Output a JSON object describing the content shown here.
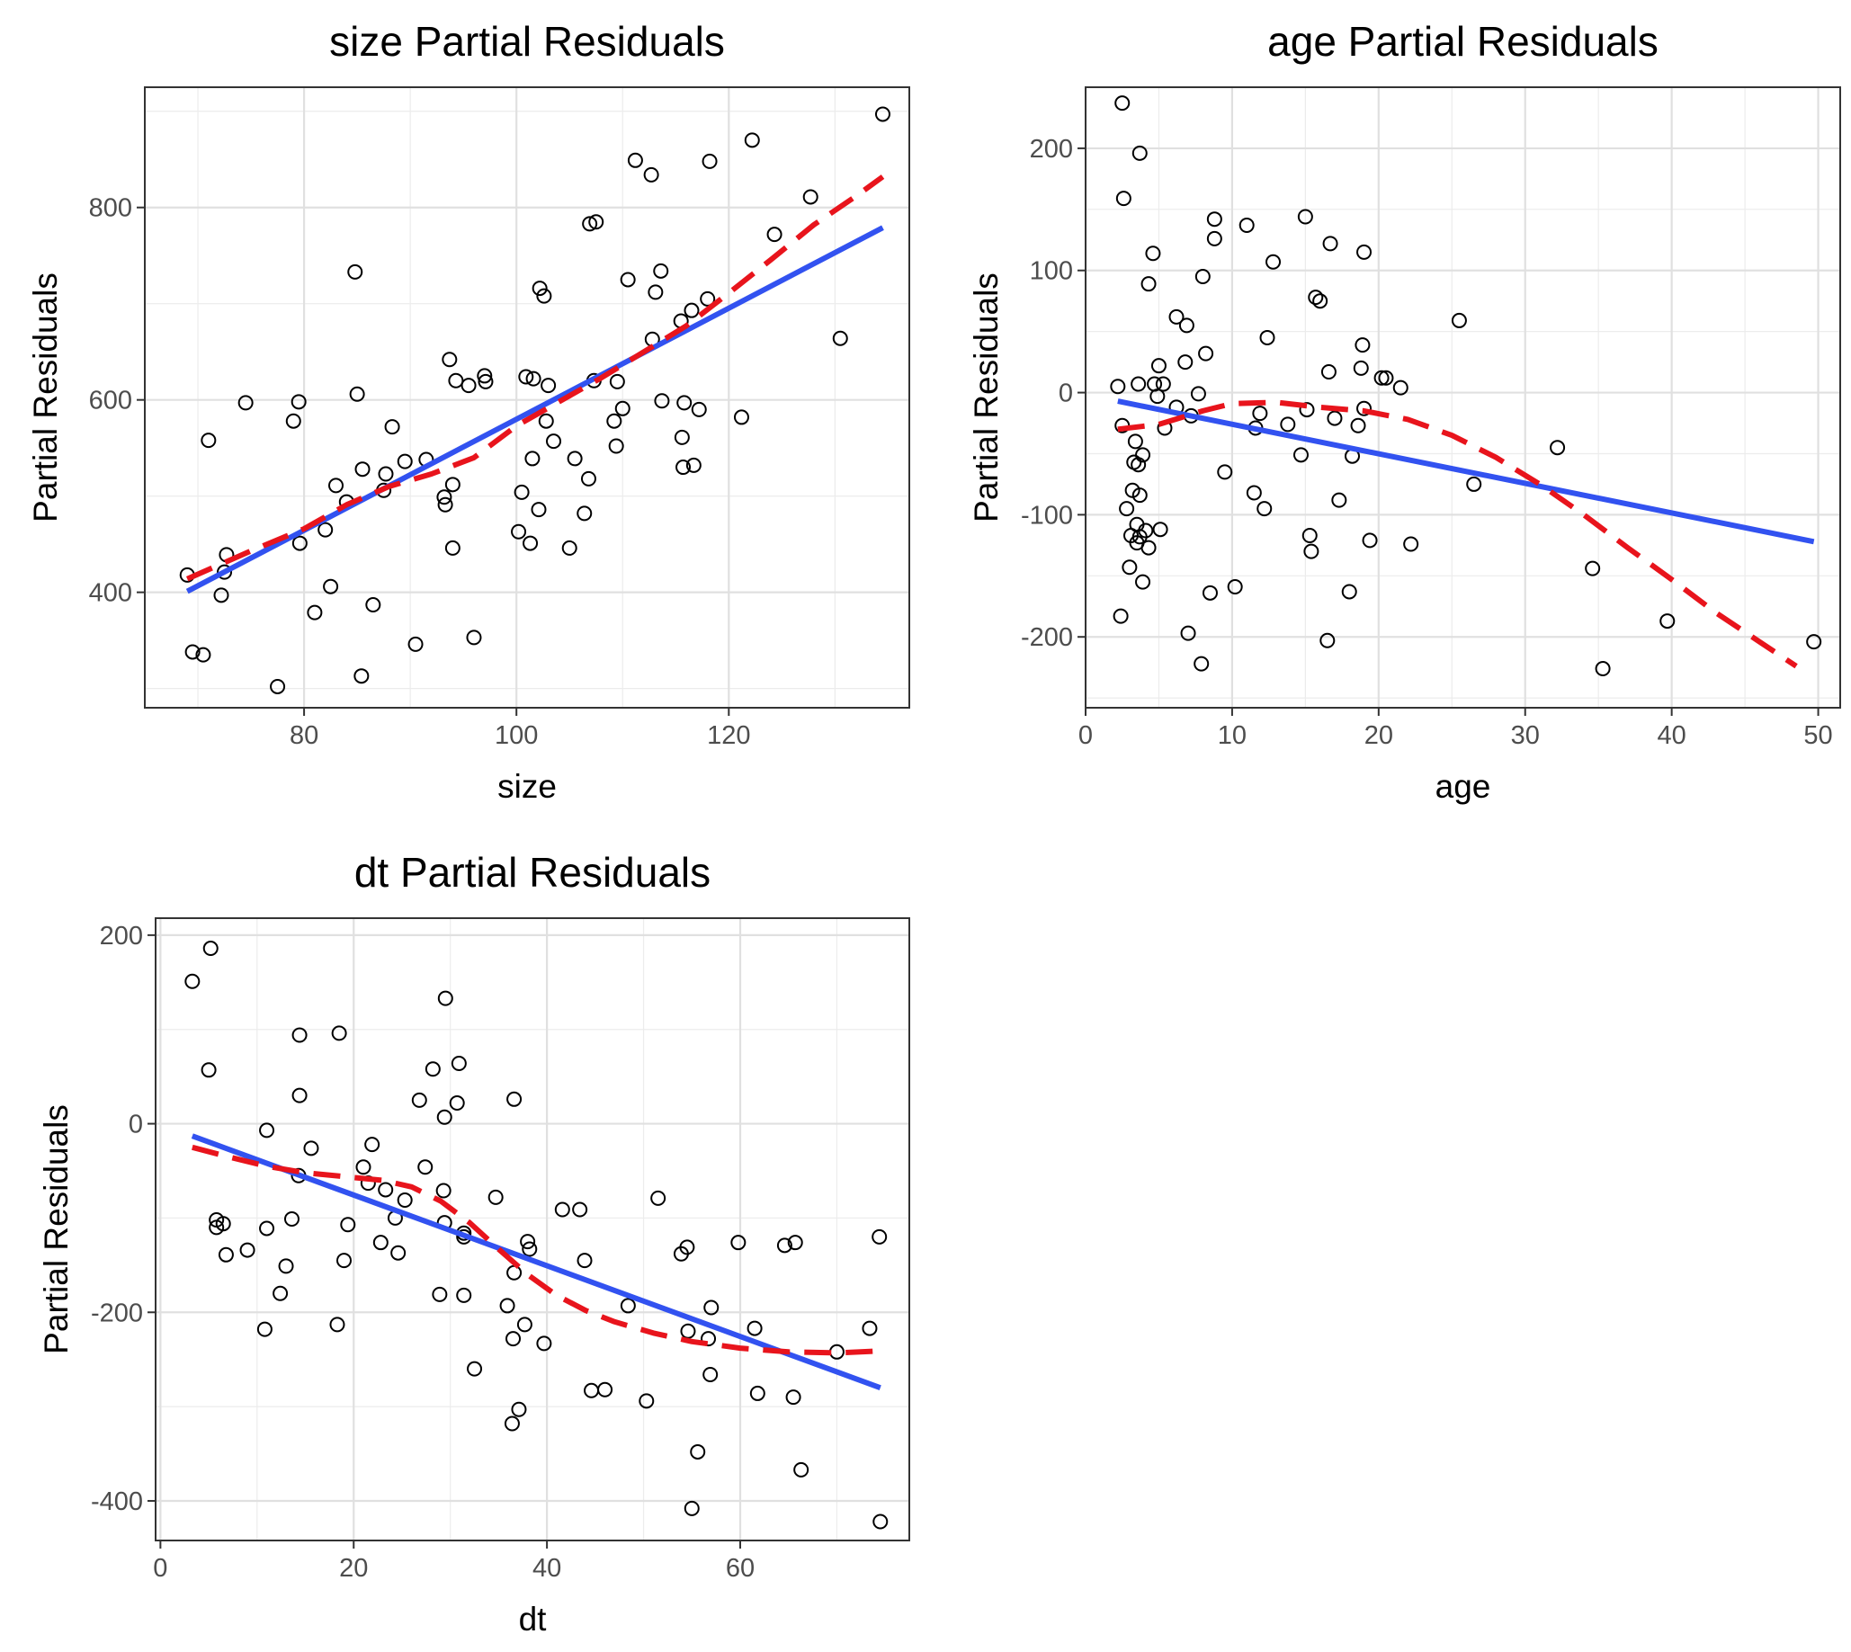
{
  "chart_data": [
    {
      "type": "scatter",
      "title": "size Partial Residuals",
      "xlabel": "size",
      "ylabel": "Partial Residuals",
      "xlim": [
        65,
        137
      ],
      "ylim": [
        280,
        925
      ],
      "xticks": [
        80,
        100,
        120
      ],
      "yticks": [
        400,
        600,
        800
      ],
      "grid": true,
      "points": [
        [
          69,
          418
        ],
        [
          69.5,
          338
        ],
        [
          70.5,
          335
        ],
        [
          71,
          558
        ],
        [
          72.2,
          397
        ],
        [
          72.5,
          421
        ],
        [
          72.7,
          439
        ],
        [
          74.5,
          597
        ],
        [
          77.5,
          302
        ],
        [
          79,
          578
        ],
        [
          79.5,
          598
        ],
        [
          79.6,
          451
        ],
        [
          81,
          379
        ],
        [
          82,
          465
        ],
        [
          82.5,
          406
        ],
        [
          83,
          511
        ],
        [
          84,
          494
        ],
        [
          84.8,
          733
        ],
        [
          85,
          606
        ],
        [
          85.4,
          313
        ],
        [
          85.5,
          528
        ],
        [
          86.5,
          387
        ],
        [
          87.5,
          506
        ],
        [
          87.7,
          523
        ],
        [
          88.3,
          572
        ],
        [
          89.5,
          536
        ],
        [
          90.5,
          346
        ],
        [
          91.5,
          538
        ],
        [
          93.2,
          499
        ],
        [
          93.3,
          491
        ],
        [
          93.7,
          642
        ],
        [
          94,
          446
        ],
        [
          94,
          512
        ],
        [
          94.3,
          620
        ],
        [
          95.5,
          615
        ],
        [
          96,
          353
        ],
        [
          97,
          625
        ],
        [
          97.1,
          619
        ],
        [
          100.2,
          463
        ],
        [
          100.5,
          504
        ],
        [
          100.9,
          624
        ],
        [
          101.5,
          539
        ],
        [
          101.6,
          622
        ],
        [
          101.3,
          451
        ],
        [
          102.1,
          486
        ],
        [
          102.2,
          716
        ],
        [
          102.6,
          708
        ],
        [
          102.8,
          578
        ],
        [
          103,
          615
        ],
        [
          103.5,
          557
        ],
        [
          105,
          446
        ],
        [
          105.5,
          539
        ],
        [
          106.4,
          482
        ],
        [
          106.8,
          518
        ],
        [
          107.3,
          620
        ],
        [
          106.9,
          783
        ],
        [
          107.5,
          785
        ],
        [
          109.2,
          578
        ],
        [
          109.4,
          552
        ],
        [
          109.5,
          619
        ],
        [
          110,
          591
        ],
        [
          110.5,
          725
        ],
        [
          111.2,
          849
        ],
        [
          112.7,
          834
        ],
        [
          112.8,
          663
        ],
        [
          113.1,
          712
        ],
        [
          113.6,
          734
        ],
        [
          113.7,
          599
        ],
        [
          115.5,
          682
        ],
        [
          115.6,
          561
        ],
        [
          115.7,
          530
        ],
        [
          115.8,
          597
        ],
        [
          116.5,
          693
        ],
        [
          116.7,
          532
        ],
        [
          117.2,
          590
        ],
        [
          118,
          705
        ],
        [
          118.2,
          848
        ],
        [
          121.2,
          582
        ],
        [
          122.2,
          870
        ],
        [
          124.3,
          772
        ],
        [
          127.7,
          811
        ],
        [
          130.5,
          664
        ],
        [
          134.5,
          897
        ]
      ],
      "fit": [
        [
          69,
          401
        ],
        [
          134.5,
          779
        ]
      ],
      "smooth": [
        [
          69,
          414
        ],
        [
          75,
          443
        ],
        [
          80,
          466
        ],
        [
          84,
          491
        ],
        [
          88,
          510
        ],
        [
          92,
          523
        ],
        [
          96,
          540
        ],
        [
          100,
          573
        ],
        [
          104,
          598
        ],
        [
          108,
          623
        ],
        [
          112,
          650
        ],
        [
          116,
          677
        ],
        [
          120,
          711
        ],
        [
          124,
          746
        ],
        [
          128,
          782
        ],
        [
          132,
          812
        ],
        [
          134.5,
          832
        ]
      ]
    },
    {
      "type": "scatter",
      "title": "age Partial Residuals",
      "xlabel": "age",
      "ylabel": "Partial Residuals",
      "xlim": [
        0,
        51.5
      ],
      "ylim": [
        -258,
        250
      ],
      "xticks": [
        0,
        10,
        20,
        30,
        40,
        50
      ],
      "yticks": [
        -200,
        -100,
        0,
        100,
        200
      ],
      "grid": true,
      "points": [
        [
          2.2,
          5
        ],
        [
          2.4,
          -183
        ],
        [
          2.5,
          -27
        ],
        [
          2.5,
          237
        ],
        [
          2.6,
          159
        ],
        [
          2.8,
          -95
        ],
        [
          3,
          -143
        ],
        [
          3.1,
          -117
        ],
        [
          3.2,
          -80
        ],
        [
          3.3,
          -57
        ],
        [
          3.4,
          -40
        ],
        [
          3.5,
          -108
        ],
        [
          3.5,
          -123
        ],
        [
          3.6,
          -59
        ],
        [
          3.7,
          -84
        ],
        [
          3.6,
          7
        ],
        [
          3.7,
          -118
        ],
        [
          3.7,
          196
        ],
        [
          3.9,
          -51
        ],
        [
          3.9,
          -155
        ],
        [
          4.1,
          -113
        ],
        [
          4.3,
          -127
        ],
        [
          4.3,
          89
        ],
        [
          4.6,
          114
        ],
        [
          4.7,
          7
        ],
        [
          4.9,
          -3
        ],
        [
          5,
          22
        ],
        [
          5.1,
          -112
        ],
        [
          5.3,
          7
        ],
        [
          5.4,
          -29
        ],
        [
          6.2,
          -12
        ],
        [
          6.2,
          62
        ],
        [
          6.8,
          25
        ],
        [
          6.9,
          55
        ],
        [
          7,
          -197
        ],
        [
          7.2,
          -19
        ],
        [
          7.7,
          -1
        ],
        [
          7.9,
          -222
        ],
        [
          8,
          95
        ],
        [
          8.2,
          32
        ],
        [
          8.5,
          -164
        ],
        [
          8.8,
          142
        ],
        [
          8.8,
          126
        ],
        [
          9.5,
          -65
        ],
        [
          10.2,
          -159
        ],
        [
          11,
          137
        ],
        [
          11.5,
          -82
        ],
        [
          11.6,
          -29
        ],
        [
          11.9,
          -17
        ],
        [
          12.2,
          -95
        ],
        [
          12.4,
          45
        ],
        [
          12.8,
          107
        ],
        [
          13.8,
          -26
        ],
        [
          14.7,
          -51
        ],
        [
          15,
          144
        ],
        [
          15.1,
          -14
        ],
        [
          15.3,
          -117
        ],
        [
          15.4,
          -130
        ],
        [
          15.7,
          78
        ],
        [
          16,
          75
        ],
        [
          16.5,
          -203
        ],
        [
          16.6,
          17
        ],
        [
          16.7,
          122
        ],
        [
          17,
          -21
        ],
        [
          17.3,
          -88
        ],
        [
          18,
          -163
        ],
        [
          18.2,
          -52
        ],
        [
          18.6,
          -27
        ],
        [
          18.8,
          20
        ],
        [
          18.9,
          39
        ],
        [
          19,
          115
        ],
        [
          19,
          -13
        ],
        [
          19.4,
          -121
        ],
        [
          20.2,
          12
        ],
        [
          20.5,
          12
        ],
        [
          21.5,
          4
        ],
        [
          22.2,
          -124
        ],
        [
          25.5,
          59
        ],
        [
          26.5,
          -75
        ],
        [
          32.2,
          -45
        ],
        [
          34.6,
          -144
        ],
        [
          35.3,
          -226
        ],
        [
          39.7,
          -187
        ],
        [
          49.7,
          -204
        ]
      ],
      "fit": [
        [
          2.2,
          -7
        ],
        [
          49.7,
          -122
        ]
      ],
      "smooth": [
        [
          2.2,
          -30
        ],
        [
          5,
          -26
        ],
        [
          8,
          -15
        ],
        [
          10,
          -9
        ],
        [
          13,
          -8
        ],
        [
          16,
          -12
        ],
        [
          19,
          -15
        ],
        [
          22,
          -22
        ],
        [
          25,
          -35
        ],
        [
          28,
          -53
        ],
        [
          31,
          -75
        ],
        [
          34,
          -100
        ],
        [
          37,
          -127
        ],
        [
          40,
          -153
        ],
        [
          43,
          -180
        ],
        [
          46,
          -204
        ],
        [
          48.5,
          -224
        ]
      ]
    },
    {
      "type": "scatter",
      "title": "dt Partial Residuals",
      "xlabel": "dt",
      "ylabel": "Partial Residuals",
      "xlim": [
        -0.5,
        77.5
      ],
      "ylim": [
        -442,
        218
      ],
      "xticks": [
        0,
        20,
        40,
        60
      ],
      "yticks": [
        -400,
        -200,
        0,
        200
      ],
      "grid": true,
      "points": [
        [
          3.3,
          151
        ],
        [
          5,
          57
        ],
        [
          5.2,
          186
        ],
        [
          5.8,
          -102
        ],
        [
          5.8,
          -110
        ],
        [
          6.5,
          -106
        ],
        [
          6.8,
          -139
        ],
        [
          9,
          -134
        ],
        [
          10.8,
          -218
        ],
        [
          11,
          -111
        ],
        [
          11,
          -7
        ],
        [
          12.4,
          -180
        ],
        [
          13,
          -151
        ],
        [
          13.6,
          -101
        ],
        [
          14.3,
          -55
        ],
        [
          14.4,
          30
        ],
        [
          14.4,
          94
        ],
        [
          15.6,
          -26
        ],
        [
          18.3,
          -213
        ],
        [
          18.5,
          96
        ],
        [
          19,
          -145
        ],
        [
          19.4,
          -107
        ],
        [
          21,
          -46
        ],
        [
          21.5,
          -63
        ],
        [
          21.9,
          -22
        ],
        [
          22.8,
          -126
        ],
        [
          23.3,
          -70
        ],
        [
          24.3,
          -100
        ],
        [
          24.6,
          -137
        ],
        [
          25.3,
          -81
        ],
        [
          26.8,
          25
        ],
        [
          27.4,
          -46
        ],
        [
          28.2,
          58
        ],
        [
          28.9,
          -181
        ],
        [
          29.3,
          -71
        ],
        [
          29.4,
          7
        ],
        [
          29.4,
          -105
        ],
        [
          29.5,
          133
        ],
        [
          30.7,
          22
        ],
        [
          30.9,
          64
        ],
        [
          31.4,
          -120
        ],
        [
          31.4,
          -116
        ],
        [
          31.4,
          -182
        ],
        [
          32.5,
          -260
        ],
        [
          34.7,
          -78
        ],
        [
          35.9,
          -193
        ],
        [
          36.4,
          -318
        ],
        [
          36.5,
          -228
        ],
        [
          36.6,
          -158
        ],
        [
          36.6,
          26
        ],
        [
          37.1,
          -303
        ],
        [
          37.7,
          -213
        ],
        [
          38,
          -125
        ],
        [
          38.2,
          -133
        ],
        [
          39.7,
          -233
        ],
        [
          41.6,
          -91
        ],
        [
          43.4,
          -91
        ],
        [
          43.9,
          -145
        ],
        [
          44.6,
          -283
        ],
        [
          46,
          -282
        ],
        [
          48.4,
          -193
        ],
        [
          50.3,
          -294
        ],
        [
          51.5,
          -79
        ],
        [
          53.9,
          -138
        ],
        [
          54.5,
          -131
        ],
        [
          54.6,
          -220
        ],
        [
          55,
          -408
        ],
        [
          55.6,
          -348
        ],
        [
          56.7,
          -228
        ],
        [
          56.9,
          -266
        ],
        [
          57,
          -195
        ],
        [
          59.8,
          -126
        ],
        [
          61.5,
          -217
        ],
        [
          61.8,
          -286
        ],
        [
          64.6,
          -129
        ],
        [
          65.5,
          -290
        ],
        [
          65.7,
          -126
        ],
        [
          66.3,
          -367
        ],
        [
          70,
          -242
        ],
        [
          73.4,
          -217
        ],
        [
          74.4,
          -120
        ],
        [
          74.5,
          -422
        ]
      ],
      "fit": [
        [
          3.3,
          -13
        ],
        [
          74.5,
          -280
        ]
      ],
      "smooth": [
        [
          3.3,
          -25
        ],
        [
          7,
          -35
        ],
        [
          11,
          -45
        ],
        [
          15,
          -52
        ],
        [
          19,
          -56
        ],
        [
          23,
          -60
        ],
        [
          26,
          -67
        ],
        [
          29,
          -82
        ],
        [
          32,
          -105
        ],
        [
          35,
          -133
        ],
        [
          38,
          -160
        ],
        [
          41,
          -182
        ],
        [
          44,
          -198
        ],
        [
          47,
          -210
        ],
        [
          51,
          -222
        ],
        [
          55,
          -231
        ],
        [
          60,
          -238
        ],
        [
          65,
          -242
        ],
        [
          70,
          -243
        ],
        [
          74.5,
          -241
        ]
      ]
    }
  ]
}
